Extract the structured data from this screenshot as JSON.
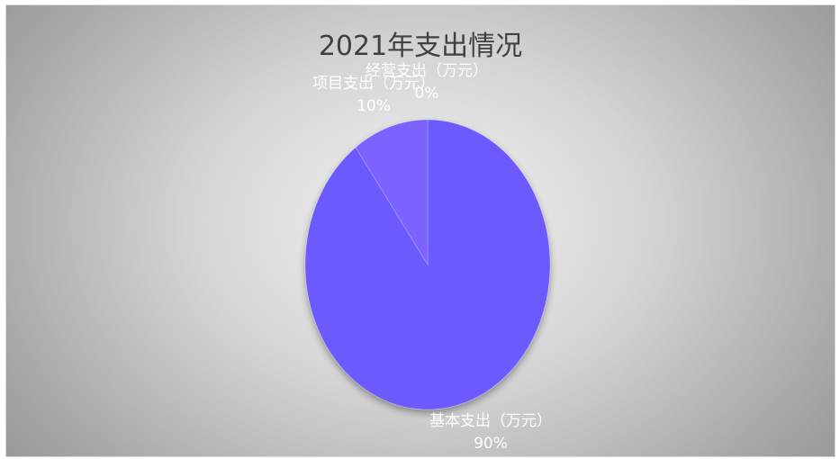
{
  "chart_data": {
    "type": "pie",
    "title": "2021年支出情况",
    "slices": [
      {
        "label": "基本支出（万元）",
        "percent_label": "90%",
        "value": 90,
        "color": "#6c5aff"
      },
      {
        "label": "项目支出（万元）",
        "percent_label": "10%",
        "value": 10,
        "color": "#7b62ff"
      },
      {
        "label": "经营支出（万元）",
        "percent_label": "0%",
        "value": 0,
        "color": "#8a70ff"
      }
    ],
    "legend": "none"
  }
}
